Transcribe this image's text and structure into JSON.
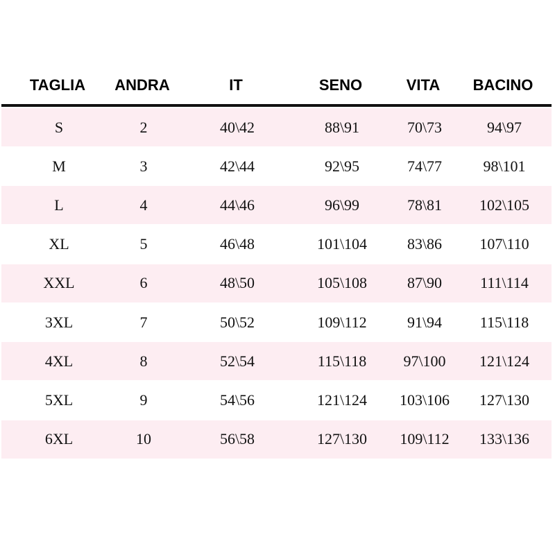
{
  "table": {
    "headers": [
      "TAGLIA",
      "ANDRA",
      "IT",
      "SENO",
      "VITA",
      "BACINO"
    ],
    "rows": [
      [
        "S",
        "2",
        "40\\42",
        "88\\91",
        "70\\73",
        "94\\97"
      ],
      [
        "M",
        "3",
        "42\\44",
        "92\\95",
        "74\\77",
        "98\\101"
      ],
      [
        "L",
        "4",
        "44\\46",
        "96\\99",
        "78\\81",
        "102\\105"
      ],
      [
        "XL",
        "5",
        "46\\48",
        "101\\104",
        "83\\86",
        "107\\110"
      ],
      [
        "XXL",
        "6",
        "48\\50",
        "105\\108",
        "87\\90",
        "111\\114"
      ],
      [
        "3XL",
        "7",
        "50\\52",
        "109\\112",
        "91\\94",
        "115\\118"
      ],
      [
        "4XL",
        "8",
        "52\\54",
        "115\\118",
        "97\\100",
        "121\\124"
      ],
      [
        "5XL",
        "9",
        "54\\56",
        "121\\124",
        "103\\106",
        "127\\130"
      ],
      [
        "6XL",
        "10",
        "56\\58",
        "127\\130",
        "109\\112",
        "133\\136"
      ]
    ],
    "stripe_color": "#fdedf2"
  }
}
